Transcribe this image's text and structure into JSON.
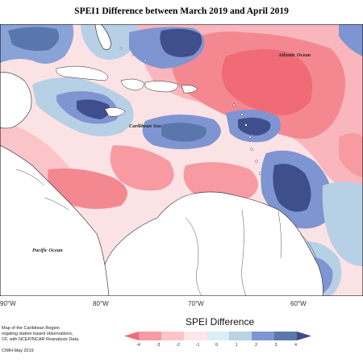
{
  "title": "SPEI1 Difference between March 2019 and April 2019",
  "ocean_labels": {
    "atlantic": "Atlantic Ocean",
    "caribbean": "Caribbean Sea",
    "pacific": "Pacific Ocean"
  },
  "longitude_labels": [
    "90°W",
    "80°W",
    "70°W",
    "60°W"
  ],
  "legend": {
    "title": "SPEI Difference",
    "ticks": [
      "-4",
      "-3",
      "-2",
      "-1",
      "0",
      "1",
      "2",
      "3",
      "4"
    ],
    "colors": [
      "#f26b78",
      "#f79aa1",
      "#fbc4c8",
      "#fde6e8",
      "#ddeef3",
      "#b7d3e4",
      "#7f95d2",
      "#5b78a8",
      "#3c4a86"
    ]
  },
  "credit_lines": [
    "Map of the Caribbean Region",
    "regating station based observations,",
    "CF, with NCEP/NCAR Reanalysis Data.",
    "CIMH May 2019"
  ]
}
